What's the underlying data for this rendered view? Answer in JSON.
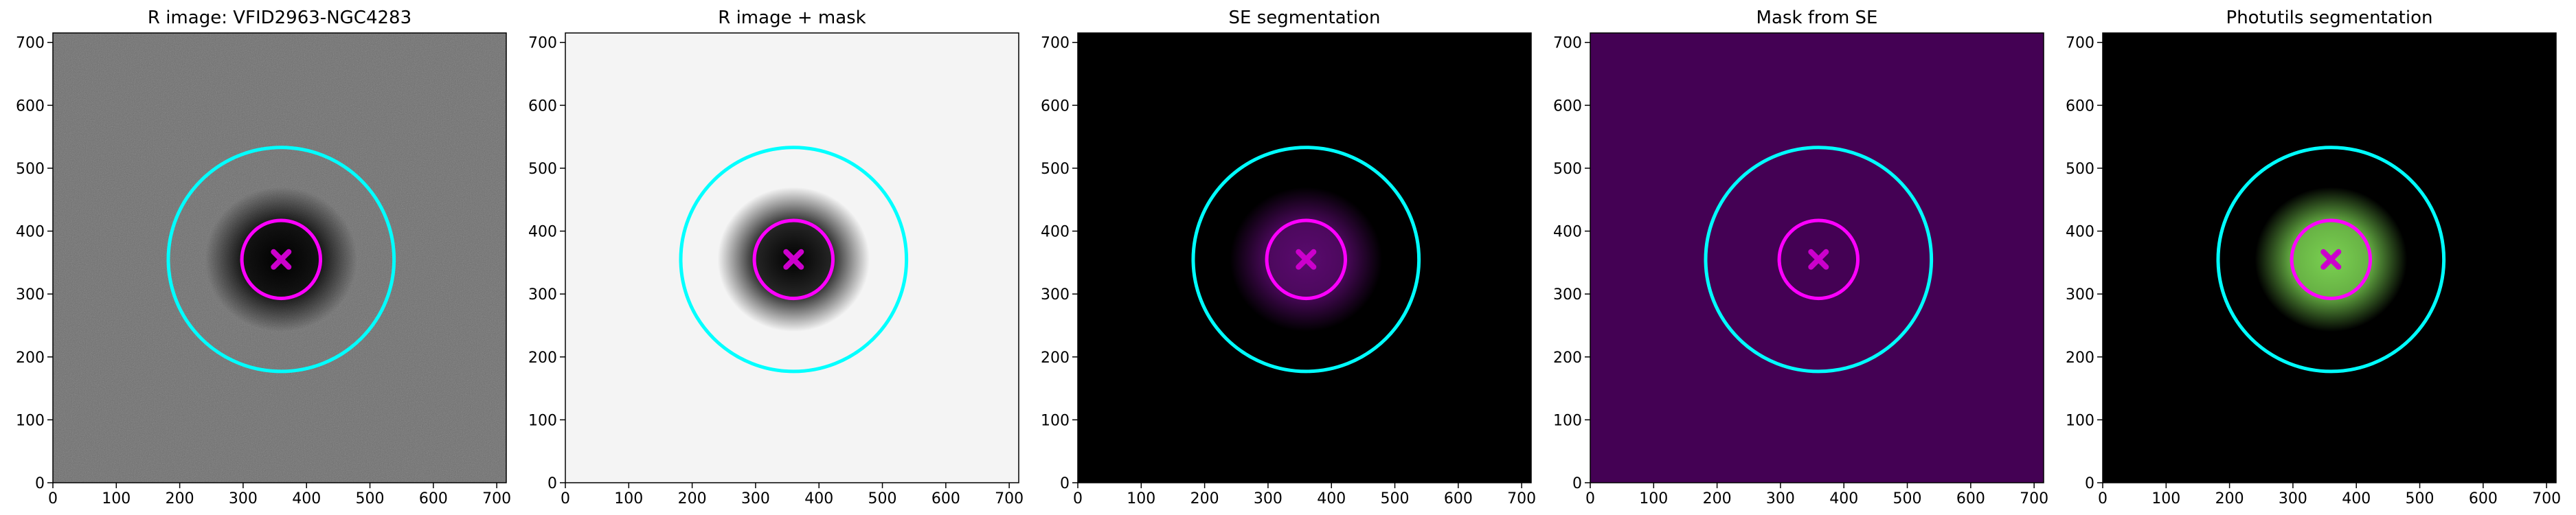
{
  "chart_data": [
    {
      "type": "image",
      "title": "R image: VFID2963-NGC4283",
      "background": "#6e6e6e",
      "noise": true,
      "blob_color": "#000000",
      "xlim": [
        0,
        715
      ],
      "ylim": [
        0,
        715
      ],
      "xticks": [
        0,
        100,
        200,
        300,
        400,
        500,
        600,
        700
      ],
      "yticks": [
        0,
        100,
        200,
        300,
        400,
        500,
        600,
        700
      ],
      "circles": [
        {
          "cx": 360,
          "cy": 355,
          "r": 178,
          "color": "#00ffff"
        },
        {
          "cx": 360,
          "cy": 355,
          "r": 62,
          "color": "#ff00ff"
        }
      ],
      "marker": {
        "x": 360,
        "y": 355,
        "color": "#cc00cc"
      }
    },
    {
      "type": "image",
      "title": "R image + mask",
      "background": "#f4f4f4",
      "noise": false,
      "blob_color": "#000000",
      "xlim": [
        0,
        715
      ],
      "ylim": [
        0,
        715
      ],
      "xticks": [
        0,
        100,
        200,
        300,
        400,
        500,
        600,
        700
      ],
      "yticks": [
        0,
        100,
        200,
        300,
        400,
        500,
        600,
        700
      ],
      "circles": [
        {
          "cx": 360,
          "cy": 355,
          "r": 178,
          "color": "#00ffff"
        },
        {
          "cx": 360,
          "cy": 355,
          "r": 62,
          "color": "#ff00ff"
        }
      ],
      "marker": {
        "x": 360,
        "y": 355,
        "color": "#cc00cc"
      }
    },
    {
      "type": "image",
      "title": "SE segmentation",
      "background": "#000000",
      "noise": false,
      "blob_color": "#5a0a6e",
      "xlim": [
        0,
        715
      ],
      "ylim": [
        0,
        715
      ],
      "xticks": [
        0,
        100,
        200,
        300,
        400,
        500,
        600,
        700
      ],
      "yticks": [
        0,
        100,
        200,
        300,
        400,
        500,
        600,
        700
      ],
      "circles": [
        {
          "cx": 360,
          "cy": 355,
          "r": 178,
          "color": "#00ffff"
        },
        {
          "cx": 360,
          "cy": 355,
          "r": 62,
          "color": "#ff00ff"
        }
      ],
      "marker": {
        "x": 360,
        "y": 355,
        "color": "#cc00cc"
      }
    },
    {
      "type": "image",
      "title": "Mask from SE",
      "background": "#440154",
      "noise": false,
      "blob_color": null,
      "xlim": [
        0,
        715
      ],
      "ylim": [
        0,
        715
      ],
      "xticks": [
        0,
        100,
        200,
        300,
        400,
        500,
        600,
        700
      ],
      "yticks": [
        0,
        100,
        200,
        300,
        400,
        500,
        600,
        700
      ],
      "circles": [
        {
          "cx": 360,
          "cy": 355,
          "r": 178,
          "color": "#00ffff"
        },
        {
          "cx": 360,
          "cy": 355,
          "r": 62,
          "color": "#ff00ff"
        }
      ],
      "marker": {
        "x": 360,
        "y": 355,
        "color": "#cc00cc"
      }
    },
    {
      "type": "image",
      "title": "Photutils segmentation",
      "background": "#000000",
      "noise": false,
      "blob_color": "#7ad151",
      "xlim": [
        0,
        715
      ],
      "ylim": [
        0,
        715
      ],
      "xticks": [
        0,
        100,
        200,
        300,
        400,
        500,
        600,
        700
      ],
      "yticks": [
        0,
        100,
        200,
        300,
        400,
        500,
        600,
        700
      ],
      "circles": [
        {
          "cx": 360,
          "cy": 355,
          "r": 178,
          "color": "#00ffff"
        },
        {
          "cx": 360,
          "cy": 355,
          "r": 62,
          "color": "#ff00ff"
        }
      ],
      "marker": {
        "x": 360,
        "y": 355,
        "color": "#cc00cc"
      }
    }
  ]
}
